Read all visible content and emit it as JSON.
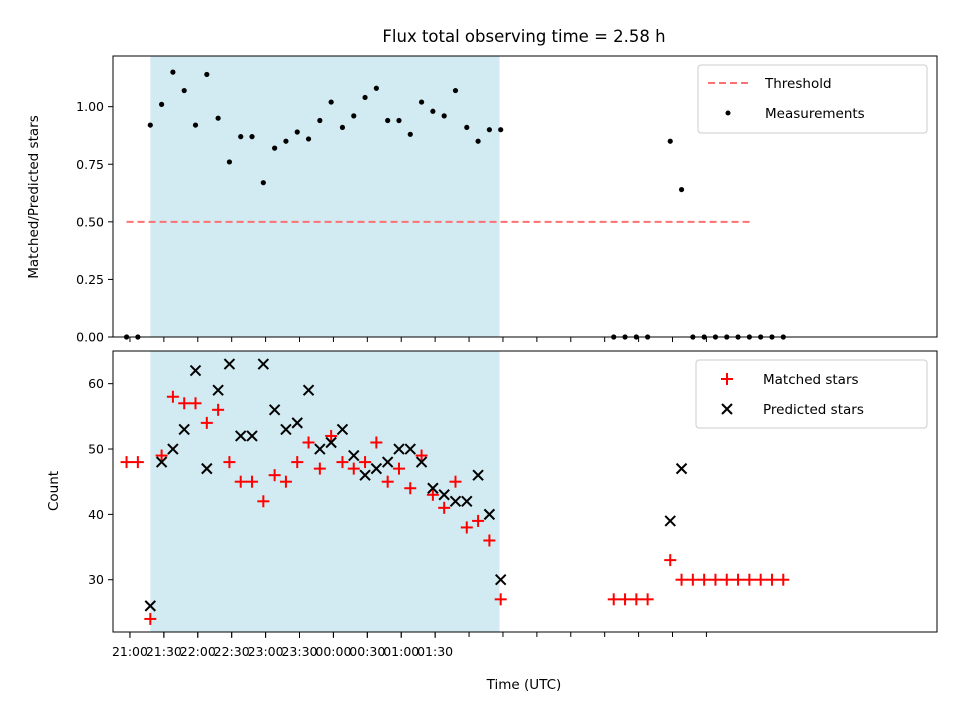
{
  "chart_data": [
    {
      "type": "scatter",
      "title": "Flux total observing time = 2.58 h",
      "xlabel": "",
      "ylabel": "Matched/Predicted stars",
      "xlim_minutes": [
        1245,
        1974
      ],
      "ylim": [
        0,
        1.22
      ],
      "yticks": [
        0,
        0.25,
        0.5,
        0.75,
        1.0
      ],
      "yticklabels": [
        "0.00",
        "0.25",
        "0.50",
        "0.75",
        "1.00"
      ],
      "shaded_span_minutes": [
        1278,
        1587
      ],
      "shade_color": "#add8e6",
      "threshold": {
        "name": "Threshold",
        "value": 0.5,
        "x_start": 1257,
        "x_end": 1809,
        "color": "#ff7070"
      },
      "series": [
        {
          "name": "Measurements",
          "marker": "dot",
          "color": "#000000",
          "x": [
            1257,
            1267,
            1278,
            1288,
            1298,
            1308,
            1318,
            1328,
            1338,
            1348,
            1358,
            1368,
            1378,
            1388,
            1398,
            1408,
            1418,
            1428,
            1438,
            1448,
            1458,
            1468,
            1478,
            1488,
            1498,
            1508,
            1518,
            1528,
            1538,
            1548,
            1558,
            1568,
            1578,
            1588,
            1688,
            1698,
            1708,
            1718,
            1738,
            1748,
            1758,
            1768,
            1778,
            1788,
            1798,
            1808,
            1818,
            1828,
            1838
          ],
          "y": [
            0,
            0,
            0.92,
            1.01,
            1.15,
            1.07,
            0.92,
            1.14,
            0.95,
            0.76,
            0.87,
            0.87,
            0.67,
            0.82,
            0.85,
            0.89,
            0.86,
            0.94,
            1.02,
            0.91,
            0.96,
            1.04,
            1.08,
            0.94,
            0.94,
            0.88,
            1.02,
            0.98,
            0.96,
            1.07,
            0.91,
            0.85,
            0.9,
            0.9,
            0,
            0,
            0,
            0,
            0.85,
            0.64,
            0,
            0,
            0,
            0,
            0,
            0,
            0,
            0,
            0
          ]
        }
      ],
      "legend": {
        "position": "top-right",
        "entries": [
          "Threshold",
          "Measurements"
        ]
      }
    },
    {
      "type": "scatter",
      "title": "",
      "xlabel": "Time (UTC)",
      "ylabel": "Count",
      "xlim_minutes": [
        1245,
        1974
      ],
      "ylim": [
        22,
        65
      ],
      "yticks": [
        30,
        40,
        50,
        60
      ],
      "yticklabels": [
        "30",
        "40",
        "50",
        "60"
      ],
      "xticks_minutes": [
        1260,
        1290,
        1320,
        1350,
        1380,
        1410,
        1440,
        1470,
        1500,
        1530,
        1560,
        1590,
        1620,
        1650,
        1680,
        1710,
        1740,
        1770
      ],
      "xticklabels": [
        "21:00",
        "21:30",
        "22:00",
        "22:30",
        "23:00",
        "23:30",
        "00:00",
        "00:30",
        "01:00",
        "01:30"
      ],
      "xticklabel_minutes": [
        1260,
        1290,
        1320,
        1350,
        1380,
        1410,
        1440,
        1470,
        1500,
        1530
      ],
      "shaded_span_minutes": [
        1278,
        1587
      ],
      "shade_color": "#add8e6",
      "series": [
        {
          "name": "Matched stars",
          "marker": "plus",
          "color": "#ff0000",
          "x": [
            1257,
            1267,
            1278,
            1288,
            1298,
            1308,
            1318,
            1328,
            1338,
            1348,
            1358,
            1368,
            1378,
            1388,
            1398,
            1408,
            1418,
            1428,
            1438,
            1448,
            1458,
            1468,
            1478,
            1488,
            1498,
            1508,
            1518,
            1528,
            1538,
            1548,
            1558,
            1568,
            1578,
            1588,
            1688,
            1698,
            1708,
            1718,
            1738,
            1748,
            1758,
            1768,
            1778,
            1788,
            1798,
            1808,
            1818,
            1828,
            1838
          ],
          "y": [
            48,
            48,
            24,
            49,
            58,
            57,
            57,
            54,
            56,
            48,
            45,
            45,
            42,
            46,
            45,
            48,
            51,
            47,
            52,
            48,
            47,
            48,
            51,
            45,
            47,
            44,
            49,
            43,
            41,
            45,
            38,
            39,
            36,
            27,
            27,
            27,
            27,
            27,
            33,
            30,
            30,
            30,
            30,
            30,
            30,
            30,
            30,
            30,
            30
          ]
        },
        {
          "name": "Predicted stars",
          "marker": "x",
          "color": "#000000",
          "x": [
            1278,
            1288,
            1298,
            1308,
            1318,
            1328,
            1338,
            1348,
            1358,
            1368,
            1378,
            1388,
            1398,
            1408,
            1418,
            1428,
            1438,
            1448,
            1458,
            1468,
            1478,
            1488,
            1498,
            1508,
            1518,
            1528,
            1538,
            1548,
            1558,
            1568,
            1578,
            1588,
            1738,
            1748
          ],
          "y": [
            26,
            48,
            50,
            53,
            62,
            47,
            59,
            63,
            52,
            52,
            63,
            56,
            53,
            54,
            59,
            50,
            51,
            53,
            49,
            46,
            47,
            48,
            50,
            50,
            48,
            44,
            43,
            42,
            42,
            46,
            40,
            30,
            39,
            47
          ]
        }
      ],
      "legend": {
        "position": "top-right",
        "entries": [
          "Matched stars",
          "Predicted stars"
        ]
      }
    }
  ]
}
